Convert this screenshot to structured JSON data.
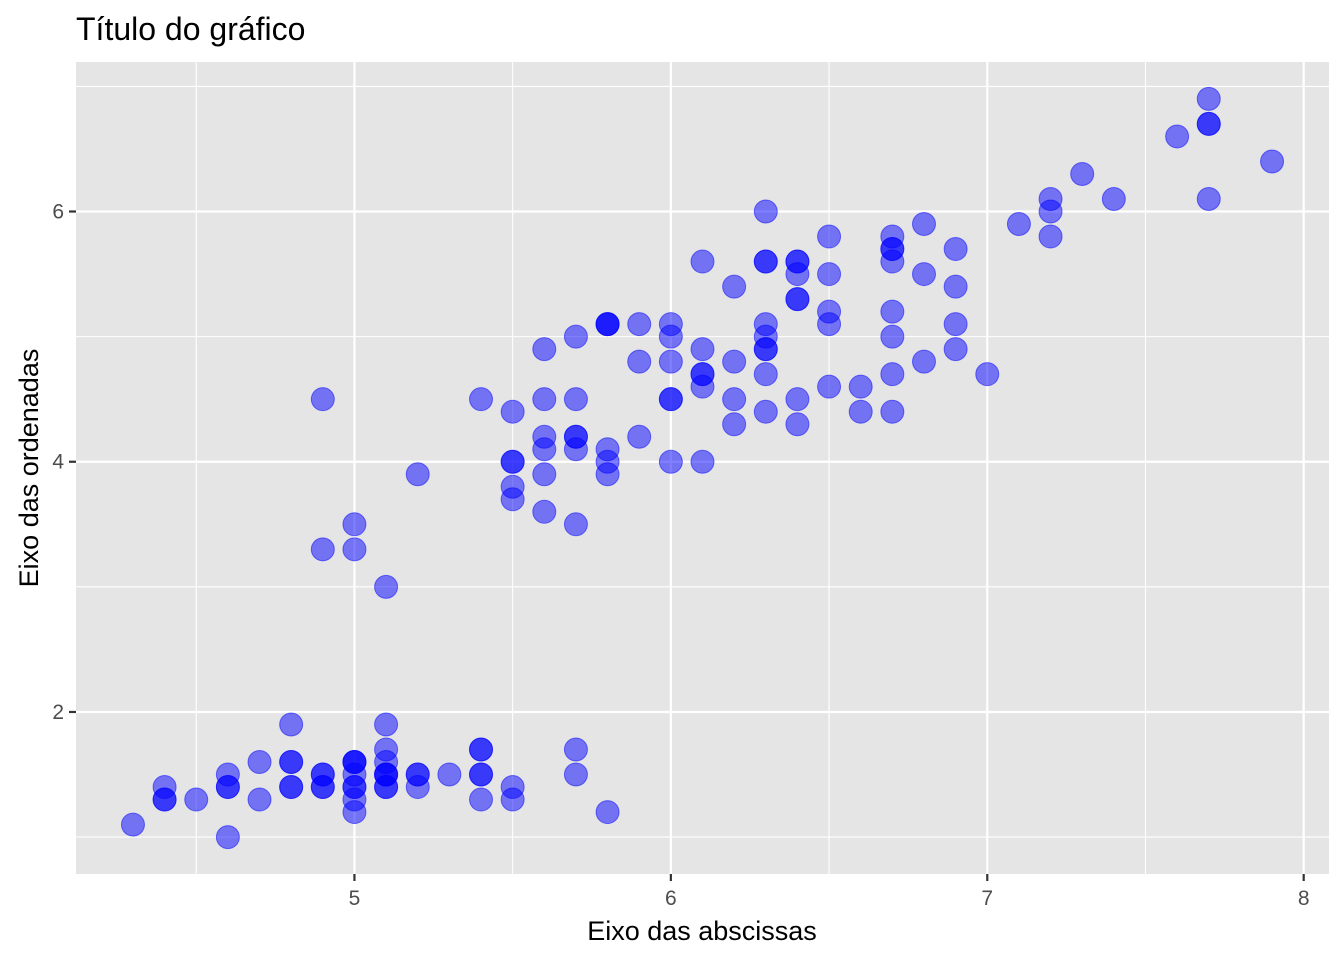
{
  "chart_data": {
    "type": "scatter",
    "title": "Título do gráfico",
    "xlabel": "Eixo das abscissas",
    "ylabel": "Eixo das ordenadas",
    "xlim": [
      4.12,
      8.08
    ],
    "ylim": [
      0.705,
      7.195
    ],
    "xticks": [
      5,
      6,
      7,
      8
    ],
    "yticks": [
      2,
      4,
      6
    ],
    "xtick_labels": [
      "5",
      "6",
      "7",
      "8"
    ],
    "ytick_labels": [
      "2",
      "4",
      "6"
    ],
    "grid": true,
    "colors": {
      "point": "#0000ff",
      "panel": "#e5e5e5",
      "grid": "#ffffff"
    },
    "point_opacity": 0.5,
    "series": [
      {
        "points": [
          [
            5.1,
            1.4
          ],
          [
            4.9,
            1.4
          ],
          [
            4.7,
            1.3
          ],
          [
            4.6,
            1.5
          ],
          [
            5.0,
            1.4
          ],
          [
            5.4,
            1.7
          ],
          [
            4.6,
            1.4
          ],
          [
            5.0,
            1.5
          ],
          [
            4.4,
            1.4
          ],
          [
            4.9,
            1.5
          ],
          [
            5.4,
            1.5
          ],
          [
            4.8,
            1.6
          ],
          [
            4.8,
            1.4
          ],
          [
            4.3,
            1.1
          ],
          [
            5.8,
            1.2
          ],
          [
            5.7,
            1.5
          ],
          [
            5.4,
            1.3
          ],
          [
            5.1,
            1.4
          ],
          [
            5.7,
            1.7
          ],
          [
            5.1,
            1.5
          ],
          [
            5.4,
            1.7
          ],
          [
            5.1,
            1.5
          ],
          [
            4.6,
            1.0
          ],
          [
            5.1,
            1.7
          ],
          [
            4.8,
            1.9
          ],
          [
            5.0,
            1.6
          ],
          [
            5.0,
            1.6
          ],
          [
            5.2,
            1.5
          ],
          [
            5.2,
            1.4
          ],
          [
            4.7,
            1.6
          ],
          [
            4.8,
            1.6
          ],
          [
            5.4,
            1.5
          ],
          [
            5.2,
            1.5
          ],
          [
            5.5,
            1.4
          ],
          [
            4.9,
            1.5
          ],
          [
            5.0,
            1.2
          ],
          [
            5.5,
            1.3
          ],
          [
            4.9,
            1.4
          ],
          [
            4.4,
            1.3
          ],
          [
            5.1,
            1.5
          ],
          [
            5.0,
            1.3
          ],
          [
            4.5,
            1.3
          ],
          [
            4.4,
            1.3
          ],
          [
            5.0,
            1.6
          ],
          [
            5.1,
            1.9
          ],
          [
            4.8,
            1.4
          ],
          [
            5.1,
            1.6
          ],
          [
            4.6,
            1.4
          ],
          [
            5.3,
            1.5
          ],
          [
            5.0,
            1.4
          ],
          [
            7.0,
            4.7
          ],
          [
            6.4,
            4.5
          ],
          [
            6.9,
            4.9
          ],
          [
            5.5,
            4.0
          ],
          [
            6.5,
            4.6
          ],
          [
            5.7,
            4.5
          ],
          [
            6.3,
            4.7
          ],
          [
            4.9,
            3.3
          ],
          [
            6.6,
            4.6
          ],
          [
            5.2,
            3.9
          ],
          [
            5.0,
            3.5
          ],
          [
            5.9,
            4.2
          ],
          [
            6.0,
            4.0
          ],
          [
            6.1,
            4.7
          ],
          [
            5.6,
            3.6
          ],
          [
            6.7,
            4.4
          ],
          [
            5.6,
            4.5
          ],
          [
            5.8,
            4.1
          ],
          [
            6.2,
            4.5
          ],
          [
            5.6,
            3.9
          ],
          [
            5.9,
            4.8
          ],
          [
            6.1,
            4.0
          ],
          [
            6.3,
            4.9
          ],
          [
            6.1,
            4.7
          ],
          [
            6.4,
            4.3
          ],
          [
            6.6,
            4.4
          ],
          [
            6.8,
            4.8
          ],
          [
            6.7,
            5.0
          ],
          [
            6.0,
            4.5
          ],
          [
            5.7,
            3.5
          ],
          [
            5.5,
            3.8
          ],
          [
            5.5,
            3.7
          ],
          [
            5.8,
            3.9
          ],
          [
            6.0,
            5.1
          ],
          [
            5.4,
            4.5
          ],
          [
            6.0,
            4.5
          ],
          [
            6.7,
            4.7
          ],
          [
            6.3,
            4.4
          ],
          [
            5.6,
            4.1
          ],
          [
            5.5,
            4.0
          ],
          [
            5.5,
            4.4
          ],
          [
            6.1,
            4.6
          ],
          [
            5.8,
            4.0
          ],
          [
            5.0,
            3.3
          ],
          [
            5.6,
            4.2
          ],
          [
            5.7,
            4.2
          ],
          [
            5.7,
            4.2
          ],
          [
            6.2,
            4.3
          ],
          [
            5.1,
            3.0
          ],
          [
            5.7,
            4.1
          ],
          [
            6.3,
            6.0
          ],
          [
            5.8,
            5.1
          ],
          [
            7.1,
            5.9
          ],
          [
            6.3,
            5.6
          ],
          [
            6.5,
            5.8
          ],
          [
            7.6,
            6.6
          ],
          [
            4.9,
            4.5
          ],
          [
            7.3,
            6.3
          ],
          [
            6.7,
            5.8
          ],
          [
            7.2,
            6.1
          ],
          [
            6.5,
            5.1
          ],
          [
            6.4,
            5.3
          ],
          [
            6.8,
            5.5
          ],
          [
            5.7,
            5.0
          ],
          [
            5.8,
            5.1
          ],
          [
            6.4,
            5.3
          ],
          [
            6.5,
            5.5
          ],
          [
            7.7,
            6.7
          ],
          [
            7.7,
            6.9
          ],
          [
            6.0,
            5.0
          ],
          [
            6.9,
            5.7
          ],
          [
            5.6,
            4.9
          ],
          [
            7.7,
            6.7
          ],
          [
            6.3,
            4.9
          ],
          [
            6.7,
            5.7
          ],
          [
            7.2,
            6.0
          ],
          [
            6.2,
            4.8
          ],
          [
            6.1,
            4.9
          ],
          [
            6.4,
            5.6
          ],
          [
            7.2,
            5.8
          ],
          [
            7.4,
            6.1
          ],
          [
            7.9,
            6.4
          ],
          [
            6.4,
            5.6
          ],
          [
            6.3,
            5.1
          ],
          [
            6.1,
            5.6
          ],
          [
            7.7,
            6.1
          ],
          [
            6.3,
            5.6
          ],
          [
            6.4,
            5.5
          ],
          [
            6.0,
            4.8
          ],
          [
            6.9,
            5.4
          ],
          [
            6.7,
            5.6
          ],
          [
            6.9,
            5.1
          ],
          [
            5.8,
            5.1
          ],
          [
            6.8,
            5.9
          ],
          [
            6.7,
            5.7
          ],
          [
            6.7,
            5.2
          ],
          [
            6.3,
            5.0
          ],
          [
            6.5,
            5.2
          ],
          [
            6.2,
            5.4
          ],
          [
            5.9,
            5.1
          ]
        ]
      }
    ]
  }
}
